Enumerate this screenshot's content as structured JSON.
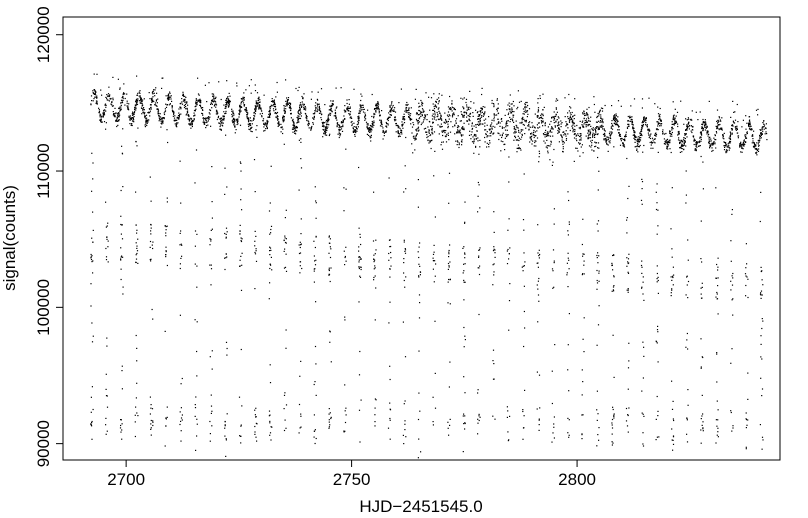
{
  "chart_data": {
    "type": "scatter",
    "title": "",
    "xlabel": "HJD−2451545.0",
    "ylabel": "signal(counts)",
    "xlim": [
      2686,
      2845
    ],
    "ylim": [
      88800,
      121300
    ],
    "xticks": [
      2700,
      2750,
      2800
    ],
    "xtick_labels": [
      "2700",
      "2750",
      "2800"
    ],
    "yticks": [
      90000,
      100000,
      110000,
      120000
    ],
    "ytick_labels": [
      "90000",
      "100000",
      "110000",
      "120000"
    ],
    "grid": false,
    "legend": "none",
    "point_color": "#000000",
    "series": [
      {
        "description_of_structure": "dense quasi-periodic band with dropout streaks",
        "x_start": 2692,
        "x_end": 2842,
        "band_level_start": 114800,
        "band_level_end": 112500,
        "band_oscillation_amplitude": 1000,
        "band_oscillation_period_days": 3.3,
        "band_scatter_peak_region": [
          2775,
          2800
        ],
        "dropout_streak_spacing_days": 3.3,
        "dropout_low_cluster_level": 91500,
        "dropout_mid_cluster_level_start": 104000,
        "dropout_mid_cluster_level_end": 101000
      }
    ]
  }
}
